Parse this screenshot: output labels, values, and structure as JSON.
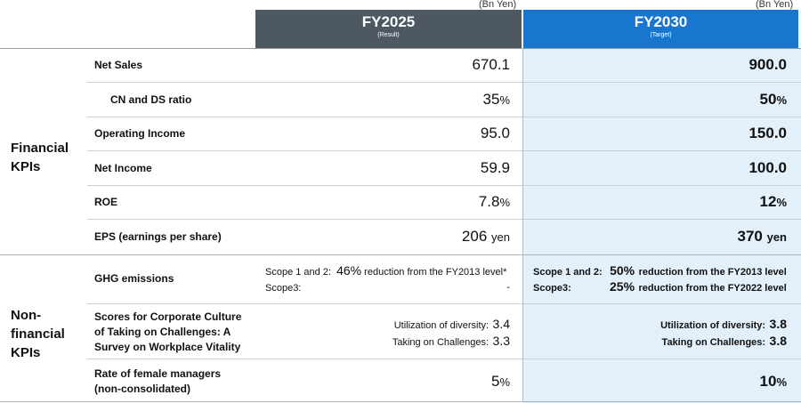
{
  "unit_label": "(Bn Yen)",
  "columns": {
    "result": {
      "title": "FY2025",
      "subtitle": "(Result)",
      "color": "#4e5862"
    },
    "target": {
      "title": "FY2030",
      "subtitle": "(Target)",
      "color": "#1976cf"
    }
  },
  "groups": {
    "financial": "Financial\nKPIs",
    "nonfinancial": "Non-\nfinancial\nKPIs"
  },
  "rows": {
    "net_sales": {
      "label": "Net Sales",
      "result": "670.1",
      "target": "900.0"
    },
    "cn_ds": {
      "label": "CN and DS ratio",
      "result": "35",
      "result_unit": "%",
      "target": "50",
      "target_unit": "%"
    },
    "operating_income": {
      "label": "Operating Income",
      "result": "95.0",
      "target": "150.0"
    },
    "net_income": {
      "label": "Net Income",
      "result": "59.9",
      "target": "100.0"
    },
    "roe": {
      "label": "ROE",
      "result": "7.8",
      "result_unit": "%",
      "target": "12",
      "target_unit": "%"
    },
    "eps": {
      "label": "EPS (earnings per share)",
      "result": "206",
      "result_unit": "yen",
      "target": "370",
      "target_unit": "yen"
    },
    "ghg": {
      "label": "GHG emissions",
      "result_scope12_label": "Scope 1 and 2:",
      "result_scope12_value": "46%",
      "result_scope12_text": "reduction from the FY2013 level*",
      "result_scope3_label": "Scope3:",
      "result_scope3_value": "-",
      "target_scope12_label": "Scope 1 and 2:",
      "target_scope12_value": "50%",
      "target_scope12_text": "reduction from the FY2013 level",
      "target_scope3_label": "Scope3:",
      "target_scope3_value": "25%",
      "target_scope3_text": "reduction from the FY2022 level"
    },
    "culture": {
      "label": "Scores for Corporate Culture\nof Taking on Challenges: A\nSurvey on Workplace Vitality",
      "div_label": "Utilization of diversity:",
      "chal_label": "Taking on Challenges:",
      "result_div": "3.4",
      "result_chal": "3.3",
      "target_div": "3.8",
      "target_chal": "3.8"
    },
    "female": {
      "label": "Rate of female managers\n(non-consolidated)",
      "result": "5",
      "result_unit": "%",
      "target": "10",
      "target_unit": "%"
    }
  }
}
